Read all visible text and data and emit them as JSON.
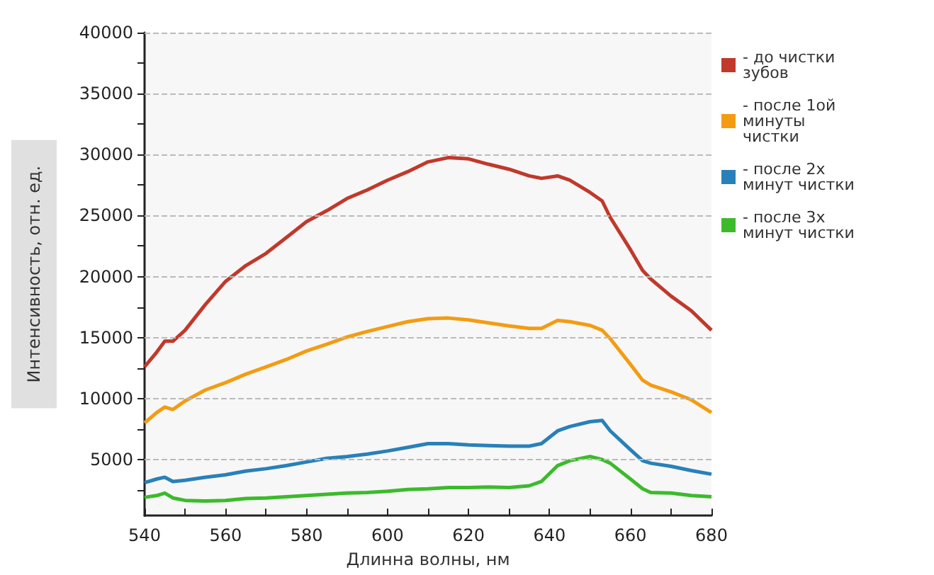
{
  "chart_data": {
    "type": "line",
    "xlabel": "Длинна волны, нм",
    "ylabel": "Интенсивность, отн. ед.",
    "xlim": [
      540,
      680
    ],
    "xticks": [
      540,
      {
        "value": 550,
        "label": null
      },
      560,
      {
        "value": 570,
        "label": null
      },
      580,
      {
        "value": 590,
        "label": null
      },
      600,
      {
        "value": 610,
        "label": null
      },
      620,
      {
        "value": 630,
        "label": null
      },
      640,
      {
        "value": 650,
        "label": null
      },
      660,
      {
        "value": 670,
        "label": null
      },
      680
    ],
    "ylim": [
      400,
      40000
    ],
    "yticks": [
      {
        "value": 2500,
        "label": null
      },
      5000,
      {
        "value": 7500,
        "label": null
      },
      10000,
      {
        "value": 12500,
        "label": null
      },
      15000,
      {
        "value": 17500,
        "label": null
      },
      20000,
      {
        "value": 22500,
        "label": null
      },
      25000,
      {
        "value": 27500,
        "label": null
      },
      30000,
      {
        "value": 32500,
        "label": null
      },
      35000,
      {
        "value": 37500,
        "label": null
      },
      40000
    ],
    "grid": "y",
    "legend": "right",
    "marker": "none",
    "line_style": "solid",
    "x": [
      540,
      543,
      545,
      547,
      550,
      555,
      560,
      565,
      570,
      575,
      580,
      585,
      590,
      595,
      600,
      605,
      610,
      615,
      620,
      625,
      630,
      635,
      638,
      642,
      645,
      650,
      653,
      655,
      660,
      663,
      665,
      670,
      675,
      680
    ],
    "series": [
      {
        "name": "- до чистки зубов",
        "color": "#c0392b",
        "values": [
          12600,
          13800,
          14700,
          14700,
          15600,
          17700,
          19600,
          20900,
          21900,
          23200,
          24500,
          25400,
          26400,
          27100,
          27900,
          28600,
          29400,
          29750,
          29650,
          29200,
          28800,
          28250,
          28050,
          28250,
          27900,
          26900,
          26200,
          24850,
          22200,
          20500,
          19800,
          18400,
          17200,
          15600
        ]
      },
      {
        "name": "- после 1ой минуты чистки",
        "color": "#f39c12",
        "values": [
          8000,
          8850,
          9300,
          9100,
          9800,
          10700,
          11300,
          12000,
          12600,
          13200,
          13900,
          14450,
          15050,
          15500,
          15900,
          16300,
          16550,
          16600,
          16450,
          16200,
          15950,
          15750,
          15750,
          16400,
          16300,
          16000,
          15600,
          14900,
          12800,
          11500,
          11100,
          10550,
          9900,
          8850
        ]
      },
      {
        "name": "- после 2х минут чистки",
        "color": "#2980b9",
        "values": [
          3100,
          3400,
          3550,
          3200,
          3300,
          3550,
          3750,
          4050,
          4250,
          4500,
          4800,
          5100,
          5250,
          5450,
          5700,
          6000,
          6300,
          6300,
          6200,
          6150,
          6100,
          6100,
          6300,
          7350,
          7700,
          8100,
          8200,
          7350,
          5800,
          4900,
          4700,
          4450,
          4100,
          3800
        ]
      },
      {
        "name": "- после 3х минут чистки",
        "color": "#3cba2c",
        "values": [
          1900,
          2050,
          2250,
          1850,
          1650,
          1600,
          1650,
          1800,
          1850,
          1950,
          2050,
          2150,
          2250,
          2300,
          2400,
          2550,
          2600,
          2700,
          2700,
          2750,
          2700,
          2850,
          3200,
          4500,
          4900,
          5250,
          5000,
          4700,
          3400,
          2600,
          2300,
          2250,
          2050,
          1950
        ]
      }
    ]
  }
}
